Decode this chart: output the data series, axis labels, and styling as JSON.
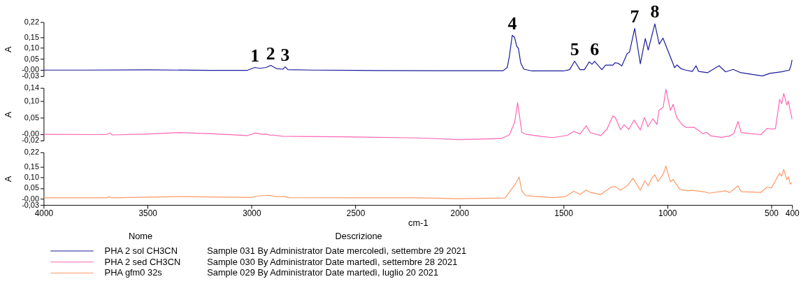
{
  "chart_data": [
    {
      "type": "line",
      "ylabel": "A",
      "xlim": [
        4000,
        400
      ],
      "ylim": [
        -0.03,
        0.22
      ],
      "tick_labels": "y",
      "grid": false,
      "yticks": [
        {
          "value": 0.22,
          "label": "0,22"
        },
        {
          "value": 0.15,
          "label": "0,15"
        },
        {
          "value": 0.1,
          "label": "0,10"
        },
        {
          "value": 0.05,
          "label": "0,05"
        },
        {
          "value": 0,
          "label": "-0,00"
        },
        {
          "value": -0.03,
          "label": "-0,03"
        }
      ],
      "series": [
        {
          "name": "PHA 2 sol CH3CN",
          "color": "#1a1a9c",
          "x": [
            4000,
            3800,
            3500,
            3200,
            3020,
            2984,
            2960,
            2930,
            2908,
            2880,
            2850,
            2838,
            2825,
            2700,
            2400,
            2100,
            1900,
            1790,
            1770,
            1760,
            1746,
            1735,
            1725,
            1716,
            1705,
            1690,
            1650,
            1500,
            1470,
            1446,
            1420,
            1399,
            1376,
            1362,
            1350,
            1315,
            1297,
            1262,
            1251,
            1238,
            1219,
            1193,
            1182,
            1157,
            1130,
            1106,
            1092,
            1060,
            1039,
            1021,
            965,
            954,
            935,
            912,
            880,
            862,
            850,
            807,
            751,
            720,
            683,
            647,
            543,
            506,
            450,
            413,
            405,
            400
          ],
          "values": [
            -0.002,
            -0.002,
            -0.001,
            -0.003,
            -0.003,
            0.01,
            0.006,
            0.01,
            0.02,
            0.005,
            0.002,
            0.013,
            0.0,
            -0.002,
            -0.004,
            -0.005,
            -0.005,
            -0.005,
            0.01,
            0.06,
            0.159,
            0.15,
            0.11,
            0.097,
            0.03,
            0.002,
            -0.006,
            -0.006,
            0.0,
            0.039,
            0.0,
            0.0,
            0.036,
            0.025,
            0.039,
            0.0,
            0.021,
            0.021,
            0.032,
            0.03,
            0.017,
            0.075,
            0.081,
            0.191,
            0.027,
            0.144,
            0.091,
            0.212,
            0.118,
            0.146,
            0.009,
            0.022,
            0.005,
            -0.002,
            -0.008,
            0.018,
            -0.008,
            -0.014,
            0.018,
            -0.01,
            0.001,
            -0.014,
            -0.029,
            -0.017,
            -0.01,
            -0.002,
            0.02,
            0.045
          ]
        }
      ],
      "annotations": [
        {
          "text": "1",
          "x": 2984,
          "y": 0.01
        },
        {
          "text": "2",
          "x": 2908,
          "y": 0.02
        },
        {
          "text": "3",
          "x": 2838,
          "y": 0.013
        },
        {
          "text": "4",
          "x": 1746,
          "y": 0.159
        },
        {
          "text": "5",
          "x": 1446,
          "y": 0.039
        },
        {
          "text": "6",
          "x": 1350,
          "y": 0.039
        },
        {
          "text": "7",
          "x": 1157,
          "y": 0.191
        },
        {
          "text": "8",
          "x": 1060,
          "y": 0.212
        }
      ]
    },
    {
      "type": "line",
      "ylabel": "A",
      "xlim": [
        4000,
        400
      ],
      "ylim": [
        -0.02,
        0.14
      ],
      "tick_labels": "y",
      "grid": false,
      "yticks": [
        {
          "value": 0.14,
          "label": "0,14"
        },
        {
          "value": 0.1,
          "label": "0,10"
        },
        {
          "value": 0.05,
          "label": "0,05"
        },
        {
          "value": 0,
          "label": "-0,00"
        },
        {
          "value": -0.02,
          "label": "-0,02"
        }
      ],
      "series": [
        {
          "name": "PHA 2 sed CH3CN",
          "color": "#ff66b3",
          "x": [
            4000,
            3700,
            3680,
            3670,
            3500,
            3350,
            3200,
            3020,
            2980,
            2950,
            2930,
            2910,
            2900,
            2850,
            2500,
            2200,
            2000,
            1800,
            1760,
            1735,
            1720,
            1700,
            1680,
            1600,
            1550,
            1480,
            1450,
            1420,
            1390,
            1370,
            1320,
            1290,
            1262,
            1250,
            1225,
            1208,
            1185,
            1160,
            1130,
            1110,
            1093,
            1070,
            1050,
            1040,
            1020,
            1007,
            985,
            972,
            955,
            930,
            910,
            870,
            830,
            812,
            790,
            740,
            700,
            680,
            660,
            645,
            600,
            550,
            520,
            500,
            480,
            460,
            450,
            440,
            425,
            418,
            400
          ],
          "values": [
            -0.001,
            -0.002,
            0.003,
            -0.003,
            0.0,
            0.004,
            0.001,
            -0.005,
            0.003,
            -0.001,
            0.0,
            -0.004,
            -0.003,
            -0.007,
            -0.009,
            -0.012,
            -0.017,
            -0.014,
            -0.003,
            0.034,
            0.095,
            0.005,
            -0.001,
            -0.008,
            -0.011,
            -0.004,
            0.008,
            0.0,
            0.025,
            0.004,
            -0.005,
            0.015,
            0.055,
            0.05,
            0.013,
            0.028,
            0.014,
            0.042,
            0.012,
            0.05,
            0.022,
            0.046,
            0.029,
            0.072,
            0.081,
            0.136,
            0.072,
            0.09,
            0.05,
            0.029,
            0.02,
            0.02,
            0.001,
            0.005,
            -0.006,
            -0.01,
            -0.006,
            0.002,
            0.038,
            0.004,
            0.001,
            -0.002,
            0.017,
            0.015,
            0.016,
            0.105,
            0.092,
            0.123,
            0.088,
            0.1,
            0.045
          ]
        }
      ]
    },
    {
      "type": "line",
      "ylabel": "A",
      "xlabel": "cm-1",
      "xlim": [
        4000,
        400
      ],
      "ylim": [
        -0.03,
        0.22
      ],
      "grid": false,
      "xticks": [
        4000,
        3500,
        3000,
        2500,
        2000,
        1500,
        1000,
        500,
        400
      ],
      "yticks": [
        {
          "value": 0.22,
          "label": "0,22"
        },
        {
          "value": 0.15,
          "label": "0,15"
        },
        {
          "value": 0.1,
          "label": "0,10"
        },
        {
          "value": 0.05,
          "label": "0,05"
        },
        {
          "value": 0,
          "label": "-0,00"
        },
        {
          "value": -0.03,
          "label": "-0,03"
        }
      ],
      "legend": "bottom",
      "legend_title": "Nome",
      "series": [
        {
          "name": "PHA gfm0 32s",
          "color": "#ff9966",
          "x": [
            4000,
            3700,
            3680,
            3670,
            3350,
            3000,
            2980,
            2920,
            2880,
            2850,
            2840,
            2820,
            2500,
            2200,
            2000,
            1780,
            1740,
            1725,
            1713,
            1700,
            1680,
            1550,
            1490,
            1450,
            1420,
            1390,
            1370,
            1320,
            1270,
            1250,
            1225,
            1193,
            1165,
            1130,
            1108,
            1092,
            1075,
            1060,
            1045,
            1030,
            1018,
            1007,
            985,
            972,
            940,
            900,
            880,
            820,
            800,
            720,
            700,
            660,
            645,
            550,
            520,
            500,
            460,
            450,
            440,
            425,
            418,
            408,
            400
          ],
          "values": [
            0.004,
            0.004,
            0.008,
            0.004,
            0.01,
            0.006,
            0.012,
            0.016,
            0.01,
            0.01,
            0.01,
            0.005,
            0.004,
            0.004,
            0.0,
            0.003,
            0.058,
            0.08,
            0.103,
            0.036,
            0.014,
            0.005,
            0.01,
            0.035,
            0.02,
            0.041,
            0.03,
            0.02,
            0.055,
            0.058,
            0.04,
            0.061,
            0.097,
            0.04,
            0.085,
            0.06,
            0.097,
            0.113,
            0.082,
            0.102,
            0.121,
            0.155,
            0.08,
            0.091,
            0.044,
            0.037,
            0.04,
            0.032,
            0.026,
            0.037,
            0.029,
            0.061,
            0.033,
            0.03,
            0.055,
            0.05,
            0.121,
            0.107,
            0.139,
            0.09,
            0.103,
            0.069,
            0.077
          ]
        }
      ],
      "annotations": [
        "Descrizione",
        "Sample 031 By Administrator Date mercoledì, settembre 29 2021",
        "Sample 030 By Administrator Date martedì, settembre 28 2021",
        "Sample 029 By Administrator Date martedì, luglio 20 2021"
      ]
    }
  ]
}
